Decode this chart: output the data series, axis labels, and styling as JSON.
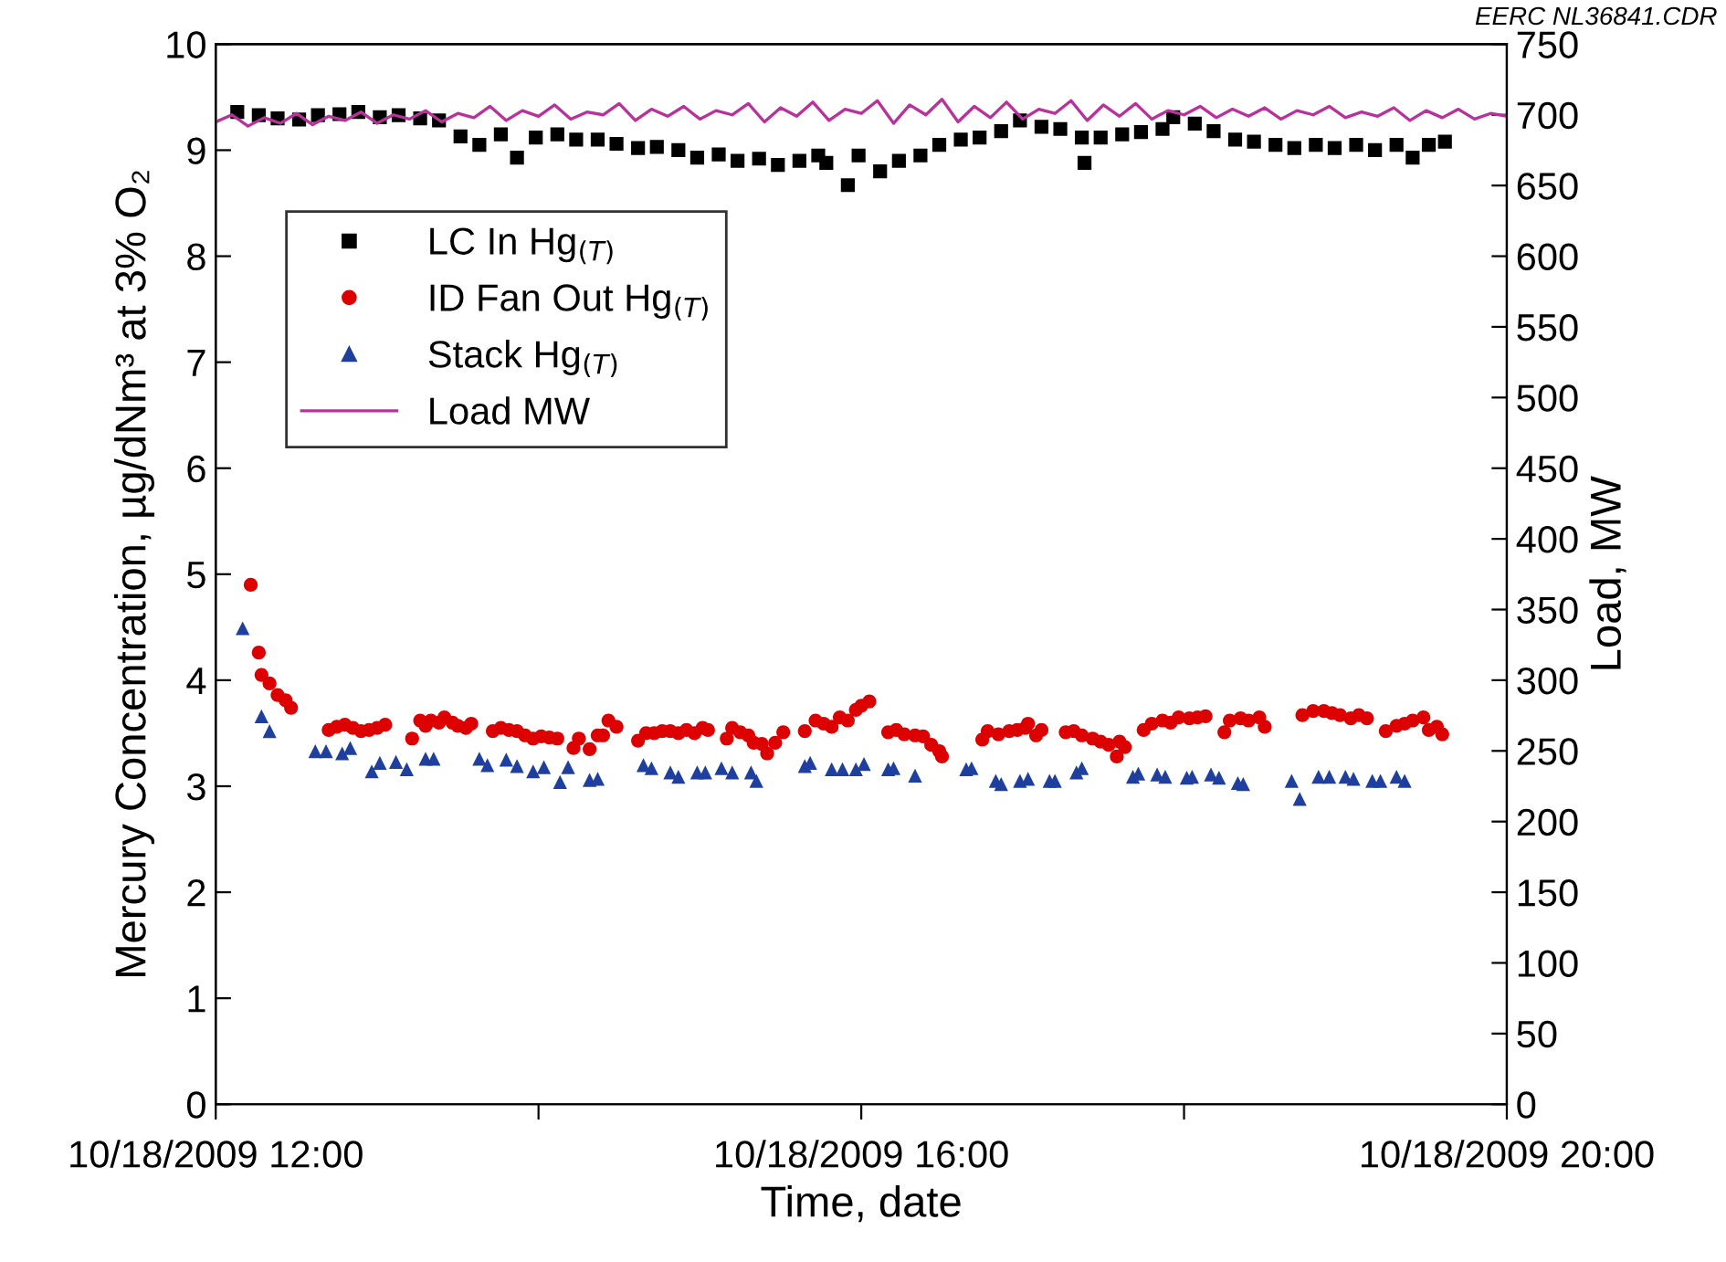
{
  "chart_data": {
    "type": "scatter",
    "xlabel": "Time, date",
    "ylabel": "Mercury Concentration, µg/dNm³ at 3% O₂",
    "y2label": "Load, MW",
    "annotations": [
      "EERC NL36841.CDR"
    ],
    "xlim": [
      "2009-10-18T12:00",
      "2009-10-18T20:00"
    ],
    "xticks": [
      {
        "value": "2009-10-18T12:00",
        "label": "10/18/2009 12:00"
      },
      {
        "value": "2009-10-18T14:00",
        "label": null
      },
      {
        "value": "2009-10-18T16:00",
        "label": "10/18/2009 16:00"
      },
      {
        "value": "2009-10-18T18:00",
        "label": null
      },
      {
        "value": "2009-10-18T20:00",
        "label": "10/18/2009 20:00"
      }
    ],
    "ylim": [
      0,
      10
    ],
    "yticks": [
      0,
      1,
      2,
      3,
      4,
      5,
      6,
      7,
      8,
      9,
      10
    ],
    "y2lim": [
      0,
      750
    ],
    "y2ticks": [
      0,
      50,
      100,
      150,
      200,
      250,
      300,
      350,
      400,
      450,
      500,
      550,
      600,
      650,
      700,
      750
    ],
    "legend": "top left",
    "series": [
      {
        "name": "LC In Hg$_{(T)}$",
        "marker": "square",
        "color": "#000000",
        "x": [
          "2009-10-18T12:08",
          "2009-10-18T12:16",
          "2009-10-18T12:23",
          "2009-10-18T12:31",
          "2009-10-18T12:38",
          "2009-10-18T12:46",
          "2009-10-18T12:53",
          "2009-10-18T13:01",
          "2009-10-18T13:08",
          "2009-10-18T13:16",
          "2009-10-18T13:23",
          "2009-10-18T13:31",
          "2009-10-18T13:38",
          "2009-10-18T13:46",
          "2009-10-18T13:52",
          "2009-10-18T13:59",
          "2009-10-18T14:07",
          "2009-10-18T14:14",
          "2009-10-18T14:22",
          "2009-10-18T14:29",
          "2009-10-18T14:37",
          "2009-10-18T14:44",
          "2009-10-18T14:52",
          "2009-10-18T14:59",
          "2009-10-18T15:07",
          "2009-10-18T15:14",
          "2009-10-18T15:22",
          "2009-10-18T15:29",
          "2009-10-18T15:37",
          "2009-10-18T15:44",
          "2009-10-18T15:47",
          "2009-10-18T15:55",
          "2009-10-18T15:59",
          "2009-10-18T16:07",
          "2009-10-18T16:14",
          "2009-10-18T16:22",
          "2009-10-18T16:29",
          "2009-10-18T16:37",
          "2009-10-18T16:44",
          "2009-10-18T16:52",
          "2009-10-18T16:59",
          "2009-10-18T17:07",
          "2009-10-18T17:14",
          "2009-10-18T17:22",
          "2009-10-18T17:23",
          "2009-10-18T17:29",
          "2009-10-18T17:37",
          "2009-10-18T17:44",
          "2009-10-18T17:52",
          "2009-10-18T17:56",
          "2009-10-18T18:04",
          "2009-10-18T18:11",
          "2009-10-18T18:19",
          "2009-10-18T18:26",
          "2009-10-18T18:34",
          "2009-10-18T18:41",
          "2009-10-18T18:49",
          "2009-10-18T18:56",
          "2009-10-18T19:04",
          "2009-10-18T19:11",
          "2009-10-18T19:19",
          "2009-10-18T19:25",
          "2009-10-18T19:31",
          "2009-10-18T19:37"
        ],
        "values": [
          9.36,
          9.33,
          9.3,
          9.29,
          9.33,
          9.34,
          9.36,
          9.31,
          9.33,
          9.3,
          9.28,
          9.13,
          9.05,
          9.15,
          8.93,
          9.12,
          9.15,
          9.1,
          9.1,
          9.06,
          9.02,
          9.03,
          9.0,
          8.93,
          8.96,
          8.9,
          8.92,
          8.86,
          8.9,
          8.95,
          8.88,
          8.67,
          8.95,
          8.8,
          8.9,
          8.95,
          9.05,
          9.1,
          9.12,
          9.18,
          9.28,
          9.22,
          9.2,
          9.12,
          8.88,
          9.12,
          9.15,
          9.17,
          9.2,
          9.31,
          9.25,
          9.18,
          9.1,
          9.08,
          9.05,
          9.02,
          9.05,
          9.02,
          9.05,
          9.0,
          9.05,
          8.93,
          9.05,
          9.08
        ]
      },
      {
        "name": "ID Fan Out Hg$_{(T)}$",
        "marker": "circle",
        "color": "#dd0000",
        "x": [
          "2009-10-18T12:13",
          "2009-10-18T12:16",
          "2009-10-18T12:17",
          "2009-10-18T12:20",
          "2009-10-18T12:23",
          "2009-10-18T12:26",
          "2009-10-18T12:28",
          "2009-10-18T12:42",
          "2009-10-18T12:45",
          "2009-10-18T12:48",
          "2009-10-18T12:51",
          "2009-10-18T12:54",
          "2009-10-18T12:57",
          "2009-10-18T13:00",
          "2009-10-18T13:03",
          "2009-10-18T13:13",
          "2009-10-18T13:16",
          "2009-10-18T13:18",
          "2009-10-18T13:20",
          "2009-10-18T13:23",
          "2009-10-18T13:25",
          "2009-10-18T13:28",
          "2009-10-18T13:30",
          "2009-10-18T13:33",
          "2009-10-18T13:35",
          "2009-10-18T13:43",
          "2009-10-18T13:46",
          "2009-10-18T13:49",
          "2009-10-18T13:52",
          "2009-10-18T13:55",
          "2009-10-18T13:58",
          "2009-10-18T14:01",
          "2009-10-18T14:04",
          "2009-10-18T14:07",
          "2009-10-18T14:13",
          "2009-10-18T14:15",
          "2009-10-18T14:19",
          "2009-10-18T14:22",
          "2009-10-18T14:24",
          "2009-10-18T14:26",
          "2009-10-18T14:29",
          "2009-10-18T14:37",
          "2009-10-18T14:40",
          "2009-10-18T14:43",
          "2009-10-18T14:46",
          "2009-10-18T14:49",
          "2009-10-18T14:52",
          "2009-10-18T14:55",
          "2009-10-18T14:58",
          "2009-10-18T15:01",
          "2009-10-18T15:03",
          "2009-10-18T15:10",
          "2009-10-18T15:12",
          "2009-10-18T15:15",
          "2009-10-18T15:18",
          "2009-10-18T15:20",
          "2009-10-18T15:23",
          "2009-10-18T15:25",
          "2009-10-18T15:28",
          "2009-10-18T15:31",
          "2009-10-18T15:39",
          "2009-10-18T15:43",
          "2009-10-18T15:46",
          "2009-10-18T15:49",
          "2009-10-18T15:52",
          "2009-10-18T15:55",
          "2009-10-18T15:58",
          "2009-10-18T16:00",
          "2009-10-18T16:03",
          "2009-10-18T16:10",
          "2009-10-18T16:13",
          "2009-10-18T16:16",
          "2009-10-18T16:20",
          "2009-10-18T16:23",
          "2009-10-18T16:26",
          "2009-10-18T16:29",
          "2009-10-18T16:30",
          "2009-10-18T16:45",
          "2009-10-18T16:47",
          "2009-10-18T16:51",
          "2009-10-18T16:55",
          "2009-10-18T16:58",
          "2009-10-18T17:01",
          "2009-10-18T17:02",
          "2009-10-18T17:05",
          "2009-10-18T17:07",
          "2009-10-18T17:16",
          "2009-10-18T17:19",
          "2009-10-18T17:22",
          "2009-10-18T17:26",
          "2009-10-18T17:29",
          "2009-10-18T17:32",
          "2009-10-18T17:35",
          "2009-10-18T17:36",
          "2009-10-18T17:38",
          "2009-10-18T17:45",
          "2009-10-18T17:48",
          "2009-10-18T17:52",
          "2009-10-18T17:55",
          "2009-10-18T17:58",
          "2009-10-18T18:02",
          "2009-10-18T18:05",
          "2009-10-18T18:08",
          "2009-10-18T18:15",
          "2009-10-18T18:17",
          "2009-10-18T18:21",
          "2009-10-18T18:24",
          "2009-10-18T18:28",
          "2009-10-18T18:30",
          "2009-10-18T18:44",
          "2009-10-18T18:48",
          "2009-10-18T18:52",
          "2009-10-18T18:55",
          "2009-10-18T18:58",
          "2009-10-18T19:02",
          "2009-10-18T19:05",
          "2009-10-18T19:08",
          "2009-10-18T19:15",
          "2009-10-18T19:19",
          "2009-10-18T19:22",
          "2009-10-18T19:25",
          "2009-10-18T19:29",
          "2009-10-18T19:31",
          "2009-10-18T19:34",
          "2009-10-18T19:36"
        ],
        "values": [
          4.9,
          4.26,
          4.05,
          3.97,
          3.86,
          3.81,
          3.74,
          3.53,
          3.56,
          3.58,
          3.55,
          3.52,
          3.53,
          3.55,
          3.58,
          3.45,
          3.62,
          3.57,
          3.62,
          3.6,
          3.65,
          3.6,
          3.57,
          3.55,
          3.59,
          3.52,
          3.55,
          3.53,
          3.52,
          3.48,
          3.45,
          3.47,
          3.46,
          3.45,
          3.36,
          3.45,
          3.35,
          3.48,
          3.48,
          3.62,
          3.56,
          3.43,
          3.5,
          3.5,
          3.52,
          3.52,
          3.5,
          3.53,
          3.5,
          3.55,
          3.53,
          3.45,
          3.55,
          3.51,
          3.48,
          3.41,
          3.4,
          3.31,
          3.41,
          3.51,
          3.52,
          3.62,
          3.59,
          3.56,
          3.65,
          3.62,
          3.72,
          3.76,
          3.8,
          3.51,
          3.53,
          3.49,
          3.48,
          3.47,
          3.39,
          3.33,
          3.28,
          3.44,
          3.52,
          3.49,
          3.52,
          3.53,
          3.55,
          3.59,
          3.48,
          3.53,
          3.51,
          3.52,
          3.48,
          3.45,
          3.42,
          3.39,
          3.28,
          3.42,
          3.37,
          3.53,
          3.59,
          3.62,
          3.6,
          3.65,
          3.64,
          3.65,
          3.66,
          3.51,
          3.62,
          3.64,
          3.62,
          3.65,
          3.56,
          3.67,
          3.71,
          3.71,
          3.69,
          3.67,
          3.64,
          3.67,
          3.64,
          3.52,
          3.57,
          3.59,
          3.62,
          3.65,
          3.53,
          3.56,
          3.49
        ]
      },
      {
        "name": "Stack Hg$_{(T)}$",
        "marker": "triangle",
        "color": "#1f3f9f",
        "x": [
          "2009-10-18T12:10",
          "2009-10-18T12:17",
          "2009-10-18T12:20",
          "2009-10-18T12:37",
          "2009-10-18T12:41",
          "2009-10-18T12:47",
          "2009-10-18T12:50",
          "2009-10-18T12:58",
          "2009-10-18T13:01",
          "2009-10-18T13:07",
          "2009-10-18T13:11",
          "2009-10-18T13:18",
          "2009-10-18T13:21",
          "2009-10-18T13:38",
          "2009-10-18T13:41",
          "2009-10-18T13:48",
          "2009-10-18T13:52",
          "2009-10-18T13:58",
          "2009-10-18T14:02",
          "2009-10-18T14:08",
          "2009-10-18T14:11",
          "2009-10-18T14:19",
          "2009-10-18T14:22",
          "2009-10-18T14:39",
          "2009-10-18T14:42",
          "2009-10-18T14:49",
          "2009-10-18T14:52",
          "2009-10-18T14:59",
          "2009-10-18T15:02",
          "2009-10-18T15:08",
          "2009-10-18T15:12",
          "2009-10-18T15:19",
          "2009-10-18T15:21",
          "2009-10-18T15:39",
          "2009-10-18T15:41",
          "2009-10-18T15:49",
          "2009-10-18T15:53",
          "2009-10-18T15:58",
          "2009-10-18T16:01",
          "2009-10-18T16:10",
          "2009-10-18T16:12",
          "2009-10-18T16:20",
          "2009-10-18T16:39",
          "2009-10-18T16:41",
          "2009-10-18T16:50",
          "2009-10-18T16:52",
          "2009-10-18T16:59",
          "2009-10-18T17:02",
          "2009-10-18T17:10",
          "2009-10-18T17:12",
          "2009-10-18T17:20",
          "2009-10-18T17:22",
          "2009-10-18T17:41",
          "2009-10-18T17:43",
          "2009-10-18T17:50",
          "2009-10-18T17:53",
          "2009-10-18T18:01",
          "2009-10-18T18:03",
          "2009-10-18T18:10",
          "2009-10-18T18:13",
          "2009-10-18T18:20",
          "2009-10-18T18:22",
          "2009-10-18T18:40",
          "2009-10-18T18:43",
          "2009-10-18T18:50",
          "2009-10-18T18:54",
          "2009-10-18T19:00",
          "2009-10-18T19:03",
          "2009-10-18T19:10",
          "2009-10-18T19:13",
          "2009-10-18T19:19",
          "2009-10-18T19:22"
        ],
        "values": [
          4.49,
          3.66,
          3.52,
          3.33,
          3.33,
          3.31,
          3.36,
          3.14,
          3.22,
          3.23,
          3.16,
          3.26,
          3.26,
          3.26,
          3.2,
          3.25,
          3.19,
          3.14,
          3.18,
          3.04,
          3.18,
          3.06,
          3.07,
          3.2,
          3.17,
          3.13,
          3.09,
          3.13,
          3.13,
          3.17,
          3.13,
          3.13,
          3.05,
          3.19,
          3.22,
          3.16,
          3.16,
          3.16,
          3.21,
          3.16,
          3.17,
          3.1,
          3.16,
          3.17,
          3.05,
          3.02,
          3.05,
          3.07,
          3.05,
          3.05,
          3.13,
          3.17,
          3.09,
          3.12,
          3.11,
          3.09,
          3.08,
          3.09,
          3.11,
          3.08,
          3.03,
          3.02,
          3.05,
          2.88,
          3.09,
          3.09,
          3.09,
          3.07,
          3.05,
          3.05,
          3.09,
          3.05
        ]
      },
      {
        "name": "Load MW",
        "type": "line",
        "axis": "y2",
        "line_style": "solid",
        "color": "#b8329c",
        "x": [
          "2009-10-18T12:00",
          "2009-10-18T12:06",
          "2009-10-18T12:12",
          "2009-10-18T12:18",
          "2009-10-18T12:24",
          "2009-10-18T12:30",
          "2009-10-18T12:36",
          "2009-10-18T12:42",
          "2009-10-18T12:48",
          "2009-10-18T12:54",
          "2009-10-18T13:00",
          "2009-10-18T13:06",
          "2009-10-18T13:12",
          "2009-10-18T13:18",
          "2009-10-18T13:24",
          "2009-10-18T13:30",
          "2009-10-18T13:36",
          "2009-10-18T13:42",
          "2009-10-18T13:48",
          "2009-10-18T13:54",
          "2009-10-18T14:00",
          "2009-10-18T14:06",
          "2009-10-18T14:12",
          "2009-10-18T14:18",
          "2009-10-18T14:24",
          "2009-10-18T14:30",
          "2009-10-18T14:36",
          "2009-10-18T14:42",
          "2009-10-18T14:48",
          "2009-10-18T14:54",
          "2009-10-18T15:00",
          "2009-10-18T15:06",
          "2009-10-18T15:12",
          "2009-10-18T15:18",
          "2009-10-18T15:24",
          "2009-10-18T15:30",
          "2009-10-18T15:36",
          "2009-10-18T15:42",
          "2009-10-18T15:48",
          "2009-10-18T15:54",
          "2009-10-18T16:00",
          "2009-10-18T16:06",
          "2009-10-18T16:12",
          "2009-10-18T16:18",
          "2009-10-18T16:24",
          "2009-10-18T16:30",
          "2009-10-18T16:36",
          "2009-10-18T16:42",
          "2009-10-18T16:48",
          "2009-10-18T16:54",
          "2009-10-18T17:00",
          "2009-10-18T17:06",
          "2009-10-18T17:12",
          "2009-10-18T17:18",
          "2009-10-18T17:24",
          "2009-10-18T17:30",
          "2009-10-18T17:36",
          "2009-10-18T17:42",
          "2009-10-18T17:48",
          "2009-10-18T17:54",
          "2009-10-18T18:00",
          "2009-10-18T18:06",
          "2009-10-18T18:12",
          "2009-10-18T18:18",
          "2009-10-18T18:24",
          "2009-10-18T18:30",
          "2009-10-18T18:36",
          "2009-10-18T18:42",
          "2009-10-18T18:48",
          "2009-10-18T18:54",
          "2009-10-18T19:00",
          "2009-10-18T19:06",
          "2009-10-18T19:12",
          "2009-10-18T19:18",
          "2009-10-18T19:24",
          "2009-10-18T19:30",
          "2009-10-18T19:36",
          "2009-10-18T19:42",
          "2009-10-18T19:48",
          "2009-10-18T19:54",
          "2009-10-18T20:00"
        ],
        "values": [
          695,
          700,
          692,
          698,
          694,
          701,
          693,
          699,
          696,
          702,
          694,
          700,
          697,
          703,
          695,
          701,
          698,
          706,
          696,
          703,
          699,
          707,
          697,
          702,
          700,
          708,
          696,
          704,
          699,
          706,
          697,
          703,
          700,
          708,
          695,
          705,
          699,
          709,
          696,
          704,
          701,
          710,
          694,
          707,
          700,
          711,
          695,
          706,
          698,
          709,
          697,
          704,
          701,
          710,
          696,
          707,
          699,
          708,
          697,
          703,
          700,
          706,
          698,
          704,
          699,
          705,
          697,
          703,
          700,
          706,
          698,
          702,
          699,
          705,
          696,
          703,
          698,
          704,
          697,
          701,
          699
        ]
      }
    ]
  }
}
